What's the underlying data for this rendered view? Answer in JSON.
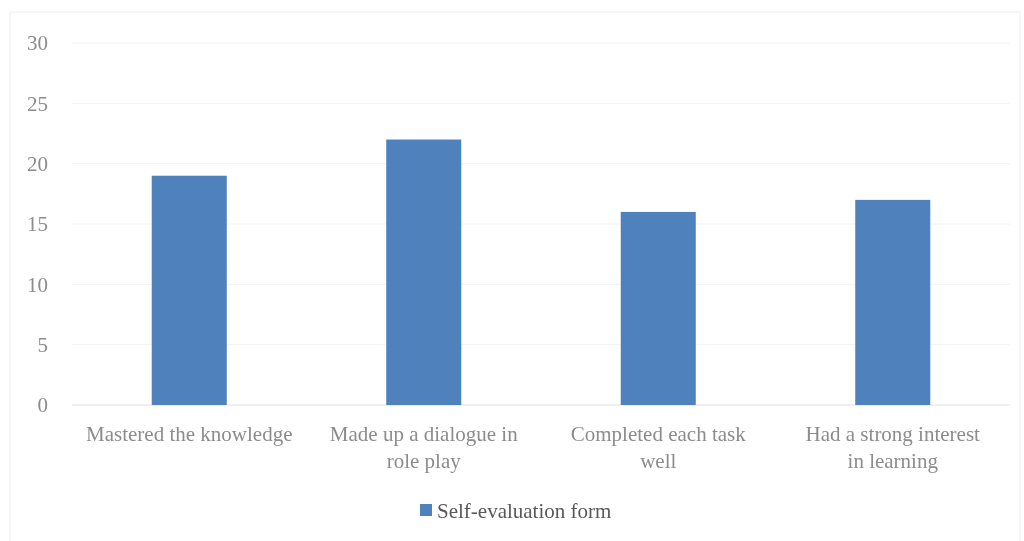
{
  "chart_data": {
    "type": "bar",
    "categories": [
      "Mastered the knowledge",
      "Made up a dialogue in role play",
      "Completed each task well",
      "Had a strong interest in learning"
    ],
    "series": [
      {
        "name": "Self-evaluation form",
        "color": "#4f81bd",
        "values": [
          19,
          22,
          16,
          17
        ]
      }
    ],
    "ylim": [
      0,
      30
    ],
    "yticks": [
      0,
      5,
      10,
      15,
      20,
      25,
      30
    ],
    "grid": "y",
    "legend": "bottom"
  }
}
